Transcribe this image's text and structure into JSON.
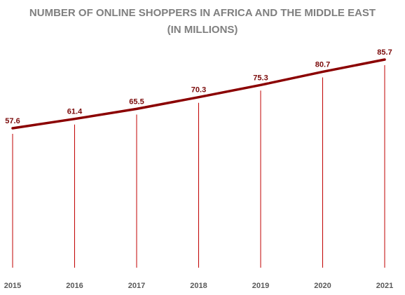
{
  "chart_data": {
    "type": "line",
    "title_lines": [
      "NUMBER OF ONLINE SHOPPERS IN AFRICA AND THE MIDDLE EAST",
      "(IN MILLIONS)"
    ],
    "categories": [
      "2015",
      "2016",
      "2017",
      "2018",
      "2019",
      "2020",
      "2021"
    ],
    "values": [
      57.6,
      61.4,
      65.5,
      70.3,
      75.3,
      80.7,
      85.7
    ],
    "data_labels": [
      "57.6",
      "61.4",
      "65.5",
      "70.3",
      "75.3",
      "80.7",
      "85.7"
    ],
    "xlabel": "",
    "ylabel": "",
    "grid": false,
    "legend": "none",
    "drop_lines": true,
    "colors": {
      "line": "#8b0000",
      "drop_line": "#c00000",
      "data_label": "#7b0a0a",
      "tick_label": "#595959",
      "title": "#7f7f7f"
    }
  }
}
